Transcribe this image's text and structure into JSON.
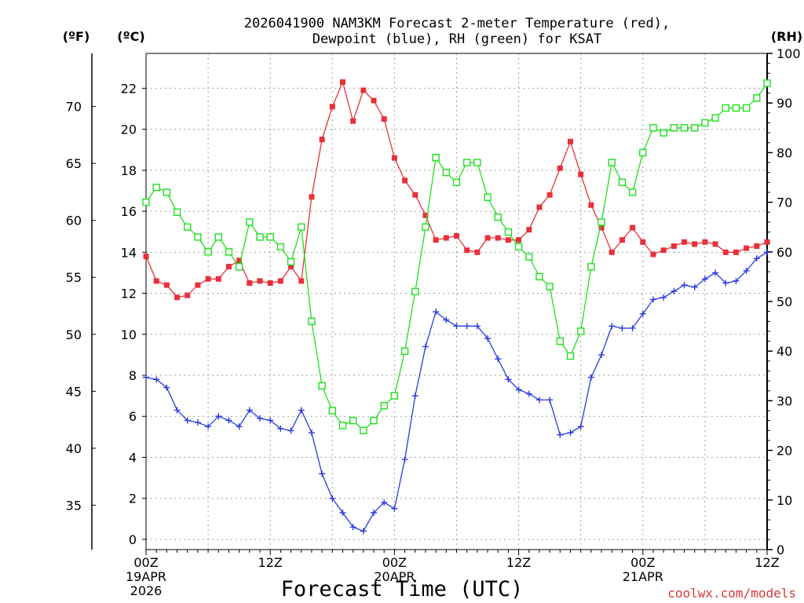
{
  "chart_data": {
    "type": "line",
    "title": "2026041900 NAM3KM Forecast 2-meter Temperature (red),",
    "subtitle": "Dewpoint (blue), RH (green) for KSAT",
    "xlabel": "Forecast Time (UTC)",
    "credit": "coolwx.com/models",
    "x_hours": [
      0,
      1,
      2,
      3,
      4,
      5,
      6,
      7,
      8,
      9,
      10,
      11,
      12,
      13,
      14,
      15,
      16,
      17,
      18,
      19,
      20,
      21,
      22,
      23,
      24,
      25,
      26,
      27,
      28,
      29,
      30,
      31,
      32,
      33,
      34,
      35,
      36,
      37,
      38,
      39,
      40,
      41,
      42,
      43,
      44,
      45,
      46,
      47,
      48,
      49,
      50,
      51,
      52,
      53,
      54,
      55,
      56,
      57,
      58,
      59,
      60
    ],
    "xlim": [
      0,
      60
    ],
    "x_ticks": [
      {
        "hour": 0,
        "lines": [
          "00Z",
          "19APR",
          "2026"
        ]
      },
      {
        "hour": 12,
        "lines": [
          "12Z"
        ]
      },
      {
        "hour": 24,
        "lines": [
          "00Z",
          "20APR"
        ]
      },
      {
        "hour": 36,
        "lines": [
          "12Z"
        ]
      },
      {
        "hour": 48,
        "lines": [
          "00Z",
          "21APR"
        ]
      },
      {
        "hour": 60,
        "lines": [
          "12Z"
        ]
      }
    ],
    "left_axis_c": {
      "unit": "(ºC)",
      "ylim": [
        -0.5,
        23.7
      ],
      "ticks": [
        0,
        2,
        4,
        6,
        8,
        10,
        12,
        14,
        16,
        18,
        20,
        22
      ]
    },
    "left_axis_f": {
      "unit": "(ºF)",
      "ticks": [
        35,
        40,
        45,
        50,
        55,
        60,
        65,
        70
      ]
    },
    "right_axis_rh": {
      "unit": "(RH)",
      "ylim": [
        0,
        100
      ],
      "ticks": [
        0,
        10,
        20,
        30,
        40,
        50,
        60,
        70,
        80,
        90,
        100
      ]
    },
    "series": [
      {
        "name": "2-meter Temperature",
        "color": "#e8303a",
        "marker": "filled-square",
        "axis": "celsius",
        "values": [
          13.8,
          12.6,
          12.4,
          11.8,
          11.9,
          12.4,
          12.7,
          12.7,
          13.3,
          13.6,
          12.5,
          12.6,
          12.5,
          12.6,
          13.3,
          12.6,
          16.7,
          19.5,
          21.1,
          22.3,
          20.4,
          21.9,
          21.4,
          20.5,
          18.6,
          17.5,
          16.8,
          15.8,
          14.6,
          14.7,
          14.8,
          14.1,
          14.0,
          14.7,
          14.7,
          14.6,
          14.6,
          15.1,
          16.2,
          16.8,
          18.1,
          19.4,
          17.8,
          16.3,
          15.2,
          14.0,
          14.6,
          15.2,
          14.5,
          13.9,
          14.1,
          14.3,
          14.5,
          14.4,
          14.5,
          14.4,
          14.0,
          14.0,
          14.2,
          14.3,
          14.5
        ]
      },
      {
        "name": "Dewpoint",
        "color": "#2a3ce0",
        "marker": "plus",
        "axis": "celsius",
        "values": [
          7.9,
          7.8,
          7.4,
          6.3,
          5.8,
          5.7,
          5.5,
          6.0,
          5.8,
          5.5,
          6.3,
          5.9,
          5.8,
          5.4,
          5.3,
          6.3,
          5.2,
          3.2,
          2.0,
          1.3,
          0.6,
          0.4,
          1.3,
          1.8,
          1.5,
          3.9,
          7.0,
          9.4,
          11.1,
          10.7,
          10.4,
          10.4,
          10.4,
          9.8,
          8.8,
          7.8,
          7.3,
          7.1,
          6.8,
          6.8,
          5.1,
          5.2,
          5.5,
          7.9,
          9.0,
          10.4,
          10.3,
          10.3,
          11.0,
          11.7,
          11.8,
          12.1,
          12.4,
          12.3,
          12.7,
          13.0,
          12.5,
          12.6,
          13.1,
          13.7,
          14.0
        ]
      },
      {
        "name": "RH",
        "color": "#1ee01e",
        "marker": "open-square",
        "axis": "rh",
        "values": [
          70,
          73,
          72,
          68,
          65,
          63,
          60,
          63,
          60,
          57,
          66,
          63,
          63,
          61,
          58,
          65,
          46,
          33,
          28,
          25,
          26,
          24,
          26,
          29,
          31,
          40,
          52,
          65,
          79,
          76,
          74,
          78,
          78,
          71,
          67,
          64,
          61,
          59,
          55,
          53,
          42,
          39,
          44,
          57,
          66,
          78,
          74,
          72,
          80,
          85,
          84,
          85,
          85,
          85,
          86,
          87,
          89,
          89,
          89,
          91,
          94
        ]
      }
    ]
  }
}
